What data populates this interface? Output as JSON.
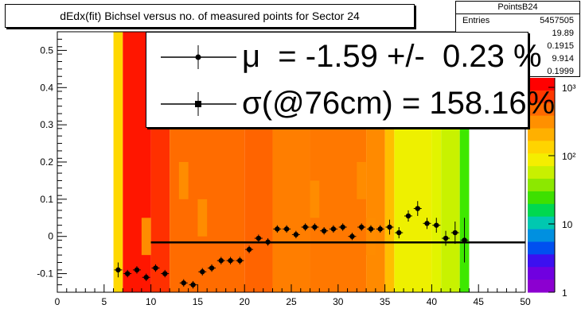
{
  "title": "dEdx(fit) Bichsel versus no. of measured points for Sector 24",
  "stats": {
    "name": "PointsB24",
    "rows": [
      {
        "label": "Entries",
        "value": "5457505"
      },
      {
        "label": "",
        "value": "19.89"
      },
      {
        "label": "",
        "value": "0.1915"
      },
      {
        "label": "",
        "value": "9.914"
      },
      {
        "label": "",
        "value": "0.1999"
      }
    ]
  },
  "legend": {
    "mu_text": "μ  = -1.59 +/-  0.23 %",
    "sigma_text": "σ(@76cm) = 158.16%"
  },
  "colorbar": {
    "labels": [
      "1",
      "10",
      "10²",
      "10³"
    ]
  },
  "chart_data": {
    "type": "scatter",
    "title": "dEdx(fit) Bichsel versus no. of measured points for Sector 24",
    "xlim": [
      0,
      50
    ],
    "ylim": [
      -0.15,
      0.55
    ],
    "x_ticks": [
      "0",
      "5",
      "10",
      "15",
      "20",
      "25",
      "30",
      "35",
      "40",
      "45",
      "50"
    ],
    "y_ticks": [
      "-0.1",
      "0",
      "0.1",
      "0.2",
      "0.3",
      "0.4",
      "0.5"
    ],
    "points": [
      {
        "x": 6.5,
        "y": -0.09,
        "err": 0.02
      },
      {
        "x": 7.5,
        "y": -0.1,
        "err": 0.01
      },
      {
        "x": 8.5,
        "y": -0.09,
        "err": 0.01
      },
      {
        "x": 9.5,
        "y": -0.11,
        "err": 0.01
      },
      {
        "x": 10.5,
        "y": -0.085,
        "err": 0.01
      },
      {
        "x": 11.5,
        "y": -0.1,
        "err": 0.01
      },
      {
        "x": 13.5,
        "y": -0.125,
        "err": 0.01
      },
      {
        "x": 14.5,
        "y": -0.13,
        "err": 0.01
      },
      {
        "x": 15.5,
        "y": -0.095,
        "err": 0.01
      },
      {
        "x": 16.5,
        "y": -0.085,
        "err": 0.01
      },
      {
        "x": 17.5,
        "y": -0.065,
        "err": 0.01
      },
      {
        "x": 18.5,
        "y": -0.065,
        "err": 0.01
      },
      {
        "x": 19.5,
        "y": -0.065,
        "err": 0.01
      },
      {
        "x": 20.5,
        "y": -0.035,
        "err": 0.01
      },
      {
        "x": 21.5,
        "y": -0.005,
        "err": 0.01
      },
      {
        "x": 22.5,
        "y": -0.015,
        "err": 0.01
      },
      {
        "x": 23.5,
        "y": 0.02,
        "err": 0.01
      },
      {
        "x": 24.5,
        "y": 0.02,
        "err": 0.01
      },
      {
        "x": 25.5,
        "y": 0.005,
        "err": 0.01
      },
      {
        "x": 26.5,
        "y": 0.025,
        "err": 0.01
      },
      {
        "x": 27.5,
        "y": 0.025,
        "err": 0.01
      },
      {
        "x": 28.5,
        "y": 0.015,
        "err": 0.01
      },
      {
        "x": 29.5,
        "y": 0.02,
        "err": 0.01
      },
      {
        "x": 30.5,
        "y": 0.025,
        "err": 0.01
      },
      {
        "x": 31.5,
        "y": 0.0,
        "err": 0.01
      },
      {
        "x": 32.5,
        "y": 0.025,
        "err": 0.01
      },
      {
        "x": 33.5,
        "y": 0.02,
        "err": 0.01
      },
      {
        "x": 34.5,
        "y": 0.02,
        "err": 0.01
      },
      {
        "x": 35.5,
        "y": 0.025,
        "err": 0.02
      },
      {
        "x": 36.5,
        "y": 0.01,
        "err": 0.015
      },
      {
        "x": 37.5,
        "y": 0.055,
        "err": 0.015
      },
      {
        "x": 38.5,
        "y": 0.075,
        "err": 0.02
      },
      {
        "x": 39.5,
        "y": 0.035,
        "err": 0.015
      },
      {
        "x": 40.5,
        "y": 0.03,
        "err": 0.02
      },
      {
        "x": 41.5,
        "y": -0.005,
        "err": 0.02
      },
      {
        "x": 42.5,
        "y": 0.01,
        "err": 0.03
      },
      {
        "x": 43.5,
        "y": -0.01,
        "err": 0.06
      }
    ],
    "fit_line": {
      "x": [
        10,
        50
      ],
      "y": [
        -0.016,
        -0.016
      ]
    },
    "heatmap_columns": [
      {
        "x0": 6,
        "x1": 7,
        "color": "#ffd800"
      },
      {
        "x0": 7,
        "x1": 10,
        "color": "#ff1600"
      },
      {
        "x0": 10,
        "x1": 12,
        "color": "#ff3000"
      },
      {
        "x0": 12,
        "x1": 20,
        "color": "#ff6c00"
      },
      {
        "x0": 20,
        "x1": 23,
        "color": "#ff6400"
      },
      {
        "x0": 23,
        "x1": 27,
        "color": "#ff7e00"
      },
      {
        "x0": 27,
        "x1": 33,
        "color": "#ff7800"
      },
      {
        "x0": 33,
        "x1": 35,
        "color": "#ff8a00"
      },
      {
        "x0": 35,
        "x1": 36,
        "color": "#ffbf00"
      },
      {
        "x0": 36,
        "x1": 40,
        "color": "#eef000"
      },
      {
        "x0": 40,
        "x1": 41,
        "color": "#e2f400"
      },
      {
        "x0": 41,
        "x1": 43,
        "color": "#c8f200"
      },
      {
        "x0": 43,
        "x1": 44,
        "color": "#3ee800"
      }
    ]
  }
}
